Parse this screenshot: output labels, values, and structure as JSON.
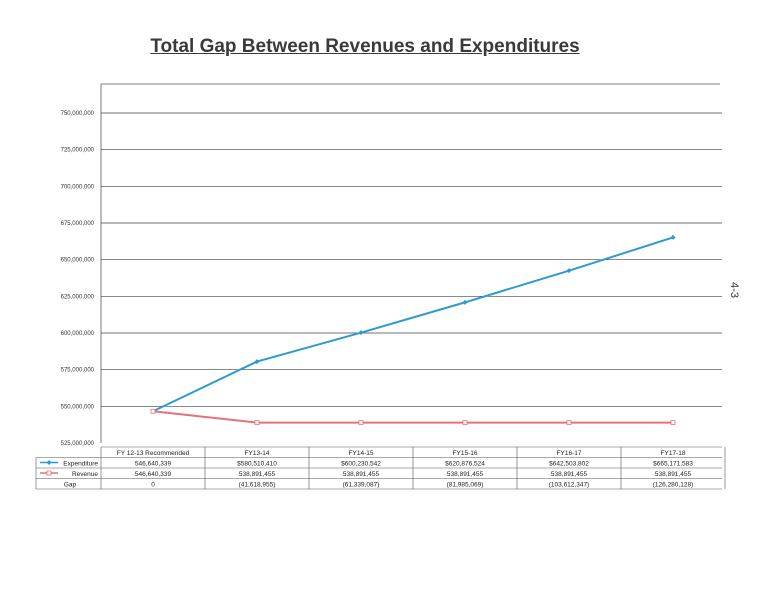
{
  "page": {
    "side_number": "4-3"
  },
  "chart_data": {
    "type": "line",
    "title": "Total Gap Between Revenues and Expenditures",
    "categories": [
      "FY 12-13 Recommended",
      "FY13-14",
      "FY14-15",
      "FY15-16",
      "FY16-17",
      "FY17-18"
    ],
    "ylim": [
      525000000,
      750000000
    ],
    "yticks": [
      525000000,
      550000000,
      575000000,
      600000000,
      625000000,
      650000000,
      675000000,
      700000000,
      725000000,
      750000000
    ],
    "ytick_labels": [
      "525,000,000",
      "550,000,000",
      "575,000,000",
      "600,000,000",
      "625,000,000",
      "650,000,000",
      "675,000,000",
      "700,000,000",
      "725,000,000",
      "750,000,000"
    ],
    "grid": true,
    "series": [
      {
        "name": "Expenditure",
        "color": "#2e9bd0",
        "marker": "diamond",
        "values": [
          546640339,
          580510410,
          600230542,
          620876524,
          642503802,
          665171583
        ],
        "table_values": [
          "546,640,339",
          "$580,510,410",
          "$600,230,542",
          "$620,876,524",
          "$642,503,802",
          "$665,171,583"
        ]
      },
      {
        "name": "Revenue",
        "color": "#e8707a",
        "marker": "square",
        "values": [
          546640339,
          538891455,
          538891455,
          538891455,
          538891455,
          538891455
        ],
        "table_values": [
          "546,640,339",
          "538,891,455",
          "538,891,455",
          "538,891,455",
          "538,891,455",
          "538,891,455"
        ]
      }
    ],
    "table_rows": [
      {
        "name": "Gap",
        "values": [
          0,
          -41618955,
          -61339087,
          -81985069,
          -103612347,
          -126280128
        ],
        "table_values": [
          "0",
          "(41,618,955)",
          "(61,339,087)",
          "(81,985,069)",
          "(103,612,347)",
          "(126,280,128)"
        ]
      }
    ]
  }
}
